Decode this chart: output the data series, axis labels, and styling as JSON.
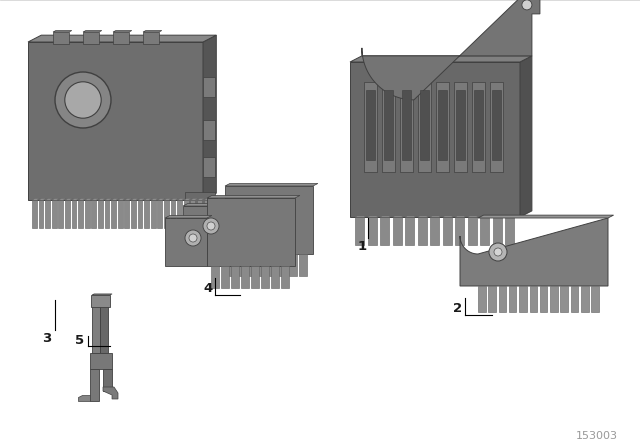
{
  "background_color": "#ffffff",
  "diagram_id": "153003",
  "body_color": "#6e6e6e",
  "body_top": "#888888",
  "body_right": "#555555",
  "tooth_color": "#8a8a8a",
  "tooth_edge": "#606060",
  "label_color": "#1a1a1a"
}
